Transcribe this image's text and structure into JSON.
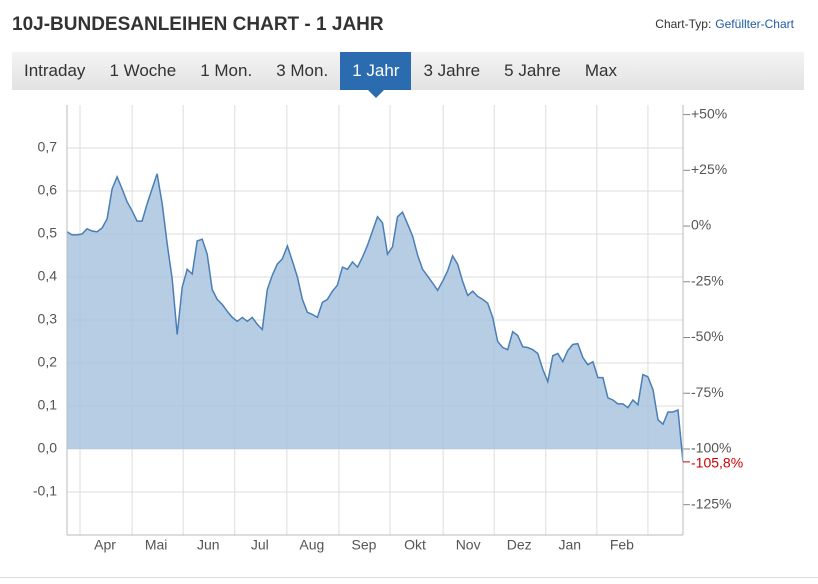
{
  "header": {
    "title": "10J-BUNDESANLEIHEN CHART - 1 JAHR",
    "chart_type_label": "Chart-Typ:",
    "chart_type_link": "Gefüllter-Chart"
  },
  "tabs": {
    "items": [
      "Intraday",
      "1 Woche",
      "1 Mon.",
      "3 Mon.",
      "1 Jahr",
      "3 Jahre",
      "5 Jahre",
      "Max"
    ],
    "selected": 4
  },
  "chart_data": {
    "type": "area",
    "color": "#4a7fb5",
    "fill": "#a9c4df",
    "values": [
      0.505,
      0.498,
      0.498,
      0.5,
      0.512,
      0.507,
      0.505,
      0.514,
      0.535,
      0.605,
      0.633,
      0.605,
      0.575,
      0.554,
      0.53,
      0.53,
      0.57,
      0.605,
      0.64,
      0.57,
      0.477,
      0.395,
      0.266,
      0.376,
      0.418,
      0.407,
      0.484,
      0.488,
      0.453,
      0.371,
      0.348,
      0.336,
      0.32,
      0.306,
      0.297,
      0.306,
      0.297,
      0.306,
      0.29,
      0.278,
      0.371,
      0.404,
      0.43,
      0.442,
      0.472,
      0.437,
      0.4,
      0.348,
      0.318,
      0.313,
      0.306,
      0.341,
      0.348,
      0.367,
      0.381,
      0.423,
      0.418,
      0.435,
      0.423,
      0.446,
      0.474,
      0.507,
      0.54,
      0.526,
      0.453,
      0.47,
      0.54,
      0.551,
      0.523,
      0.495,
      0.451,
      0.418,
      0.402,
      0.386,
      0.369,
      0.39,
      0.414,
      0.449,
      0.43,
      0.39,
      0.357,
      0.367,
      0.355,
      0.348,
      0.339,
      0.306,
      0.25,
      0.236,
      0.231,
      0.273,
      0.264,
      0.238,
      0.236,
      0.231,
      0.222,
      0.185,
      0.157,
      0.217,
      0.222,
      0.203,
      0.229,
      0.243,
      0.245,
      0.213,
      0.196,
      0.203,
      0.166,
      0.166,
      0.119,
      0.114,
      0.105,
      0.105,
      0.096,
      0.114,
      0.103,
      0.173,
      0.168,
      0.138,
      0.068,
      0.058,
      0.086,
      0.086,
      0.091,
      -0.03
    ],
    "xlim": [
      0,
      123
    ],
    "xticks": [
      {
        "value": 7.6,
        "label": "Apr"
      },
      {
        "value": 17.8,
        "label": "Mai"
      },
      {
        "value": 28.2,
        "label": "Jun"
      },
      {
        "value": 38.5,
        "label": "Jul"
      },
      {
        "value": 48.9,
        "label": "Aug"
      },
      {
        "value": 59.3,
        "label": "Sep"
      },
      {
        "value": 69.5,
        "label": "Okt"
      },
      {
        "value": 80.1,
        "label": "Nov"
      },
      {
        "value": 90.3,
        "label": "Dez"
      },
      {
        "value": 100.4,
        "label": "Jan"
      },
      {
        "value": 110.8,
        "label": "Feb"
      }
    ],
    "xgrid": [
      2.6,
      13,
      23.2,
      33.5,
      43.9,
      54.3,
      64.5,
      75.1,
      85.3,
      95.6,
      105.8,
      116
    ],
    "ylim": [
      -0.2,
      0.8
    ],
    "yticks": [
      {
        "value": -0.1,
        "label": "-0,1"
      },
      {
        "value": 0,
        "label": "0,0"
      },
      {
        "value": 0.1,
        "label": "0,1"
      },
      {
        "value": 0.2,
        "label": "0,2"
      },
      {
        "value": 0.3,
        "label": "0,3"
      },
      {
        "value": 0.4,
        "label": "0,4"
      },
      {
        "value": 0.5,
        "label": "0,5"
      },
      {
        "value": 0.6,
        "label": "0,6"
      },
      {
        "value": 0.7,
        "label": "0,7"
      }
    ],
    "y2lim": [
      -138.6,
      54.3
    ],
    "y2ticks": [
      {
        "value": 50,
        "label": "+50%"
      },
      {
        "value": 25,
        "label": "+25%"
      },
      {
        "value": 0,
        "label": "0%"
      },
      {
        "value": -25,
        "label": "-25%"
      },
      {
        "value": -50,
        "label": "-50%"
      },
      {
        "value": -75,
        "label": "-75%"
      },
      {
        "value": -100,
        "label": "-100%"
      },
      {
        "value": -125,
        "label": "-125%"
      }
    ],
    "last_value": {
      "value": -105.8,
      "label": "-105,8%"
    },
    "last_value_color": "#cc0000",
    "grid": true
  }
}
